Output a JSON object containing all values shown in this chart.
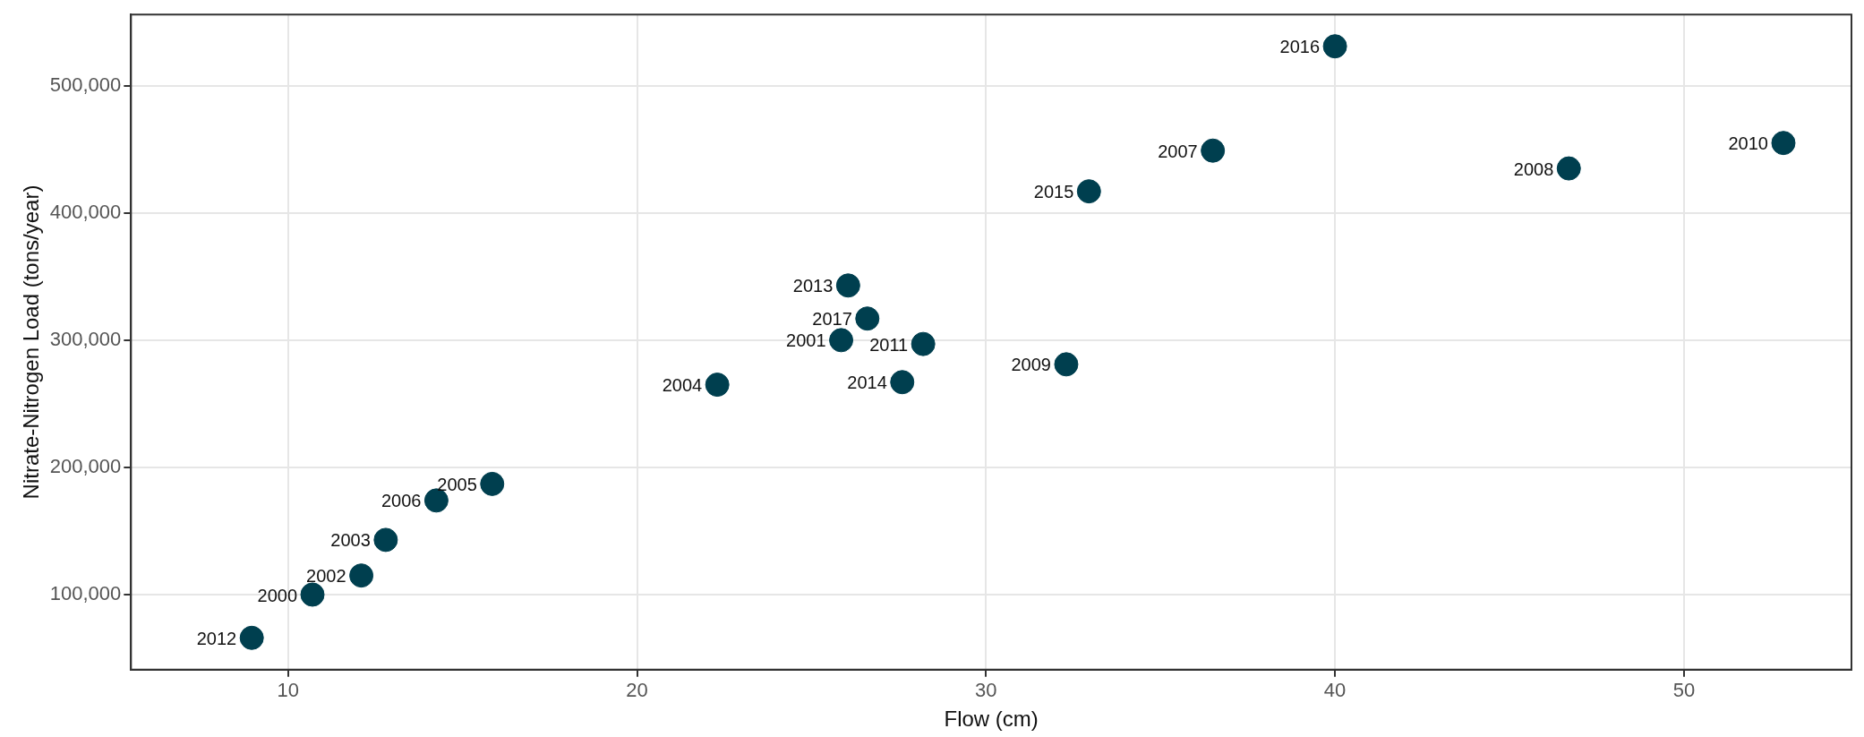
{
  "chart_data": {
    "type": "scatter",
    "xlabel": "Flow (cm)",
    "ylabel": "Nitrate-Nitrogen Load (tons/year)",
    "x": [
      10.7,
      25.85,
      12.1,
      12.8,
      22.3,
      15.85,
      14.25,
      36.5,
      46.7,
      32.3,
      52.85,
      28.2,
      8.96,
      26.05,
      27.6,
      32.95,
      40.0,
      26.6
    ],
    "series": [
      {
        "color": "#003f4f",
        "values": [
          100000,
          300000,
          115000,
          143000,
          265000,
          187000,
          174000,
          449000,
          435000,
          281000,
          455000,
          297000,
          66000,
          343000,
          267000,
          417000,
          531000,
          317000
        ]
      }
    ],
    "annotations": [
      {
        "text": "2000",
        "x": 10.7,
        "y": 100000
      },
      {
        "text": "2001",
        "x": 25.85,
        "y": 300000
      },
      {
        "text": "2002",
        "x": 12.1,
        "y": 115000
      },
      {
        "text": "2003",
        "x": 12.8,
        "y": 143000
      },
      {
        "text": "2004",
        "x": 22.3,
        "y": 265000
      },
      {
        "text": "2005",
        "x": 15.85,
        "y": 187000
      },
      {
        "text": "2006",
        "x": 14.25,
        "y": 174000
      },
      {
        "text": "2007",
        "x": 36.5,
        "y": 449000
      },
      {
        "text": "2008",
        "x": 46.7,
        "y": 435000
      },
      {
        "text": "2009",
        "x": 32.3,
        "y": 281000
      },
      {
        "text": "2010",
        "x": 52.85,
        "y": 455000
      },
      {
        "text": "2011",
        "x": 28.2,
        "y": 297000
      },
      {
        "text": "2012",
        "x": 8.96,
        "y": 66000
      },
      {
        "text": "2013",
        "x": 26.05,
        "y": 343000
      },
      {
        "text": "2014",
        "x": 27.6,
        "y": 267000
      },
      {
        "text": "2015",
        "x": 32.95,
        "y": 417000
      },
      {
        "text": "2016",
        "x": 40.0,
        "y": 531000
      },
      {
        "text": "2017",
        "x": 26.6,
        "y": 317000
      }
    ],
    "xlim": [
      5.5,
      54.8
    ],
    "xticks": [
      10,
      20,
      30,
      40,
      50
    ],
    "ylim": [
      41000,
      556000
    ],
    "yticks": [
      {
        "value": 100000,
        "label": "100,000"
      },
      {
        "value": 200000,
        "label": "200,000"
      },
      {
        "value": 300000,
        "label": "300,000"
      },
      {
        "value": 400000,
        "label": "400,000"
      },
      {
        "value": 500000,
        "label": "500,000"
      }
    ],
    "grid": true,
    "legend": false,
    "marker": "circle"
  }
}
